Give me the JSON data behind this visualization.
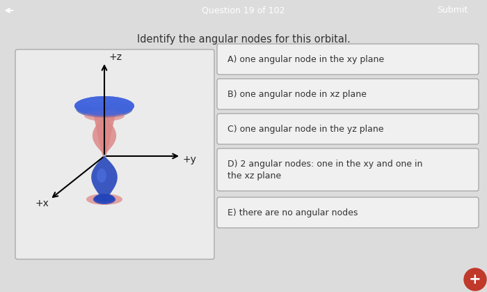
{
  "title_bar_color": "#c0392b",
  "title_bar_text": "Question 19 of 102",
  "submit_text": "Submit",
  "background_color": "#dcdcdc",
  "question_text": "Identify the angular nodes for this orbital.",
  "options": [
    "A) one angular node in the xy plane",
    "B) one angular node in xz plane",
    "C) one angular node in the yz plane",
    "D) 2 angular nodes: one in the xy and one in\nthe xz plane",
    "E) there are no angular nodes"
  ],
  "option_box_color": "#f0f0f0",
  "option_box_edge": "#aaaaaa",
  "option_text_color": "#333333",
  "diagram_box_color": "#ebebeb",
  "diagram_box_edge": "#aaaaaa",
  "blue_color": "#2244bb",
  "blue_light": "#4466dd",
  "red_color": "#cc3333",
  "pink_color": "#dd8888",
  "pink_light": "#eaaa99",
  "figsize": [
    7.0,
    4.19
  ],
  "dpi": 100
}
